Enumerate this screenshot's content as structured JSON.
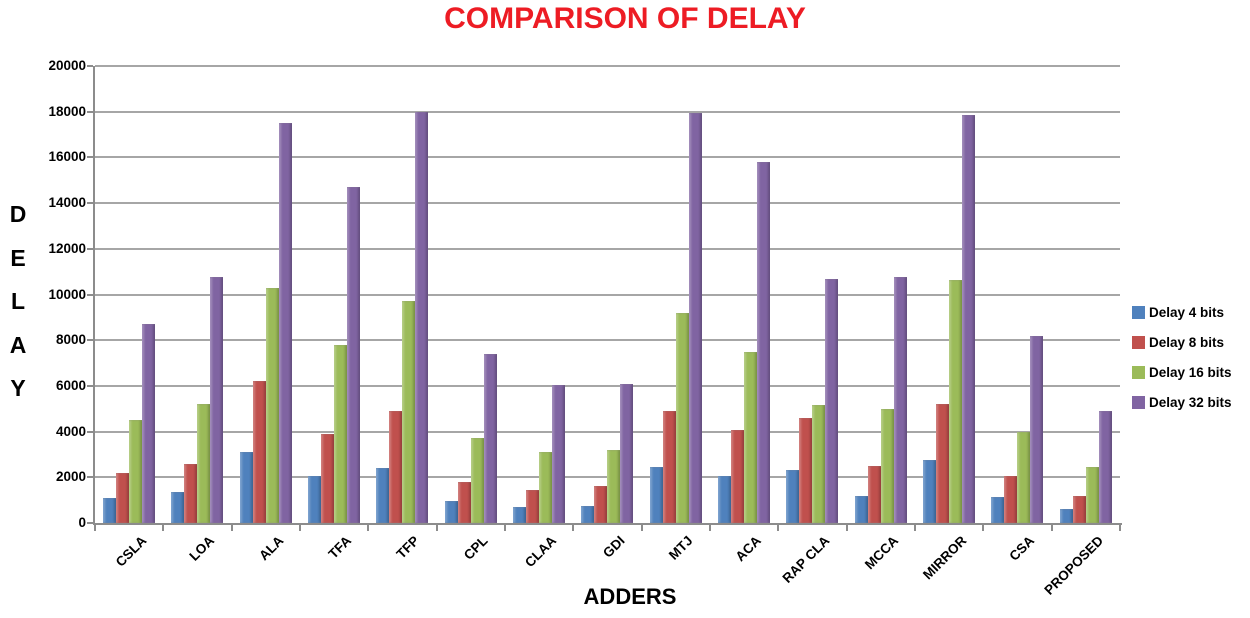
{
  "title": "COMPARISON OF DELAY",
  "colors": {
    "title_red": "#ED1C24",
    "axis_line": "#8C8C8C",
    "gridline": "#A6A6A6",
    "text": "#000000",
    "series_blue": "#4F81BD",
    "series_red": "#C0504D",
    "series_green": "#9BBB59",
    "series_purple": "#8064A2"
  },
  "chart_data": {
    "type": "bar",
    "title": "COMPARISON OF DELAY",
    "xlabel": "ADDERS",
    "ylabel": "DELAY",
    "ylim": [
      0,
      20000
    ],
    "yticks": [
      0,
      2000,
      4000,
      6000,
      8000,
      10000,
      12000,
      14000,
      16000,
      18000,
      20000
    ],
    "grid": true,
    "legend_position": "right",
    "categories": [
      "CSLA",
      "LOA",
      "ALA",
      "TFA",
      "TFP",
      "CPL",
      "CLAA",
      "GDI",
      "MTJ",
      "ACA",
      "RAP CLA",
      "MCCA",
      "MIRROR",
      "CSA",
      "PROPOSED"
    ],
    "series": [
      {
        "name": "Delay 4 bits",
        "color": "#4F81BD",
        "values": [
          1100,
          1350,
          3100,
          2050,
          2400,
          950,
          700,
          750,
          2450,
          2050,
          2300,
          1200,
          2750,
          1150,
          600
        ]
      },
      {
        "name": "Delay 8 bits",
        "color": "#C0504D",
        "values": [
          2200,
          2600,
          6200,
          3900,
          4900,
          1800,
          1450,
          1600,
          4900,
          4050,
          4600,
          2500,
          5200,
          2050,
          1200
        ]
      },
      {
        "name": "Delay 16 bits",
        "color": "#9BBB59",
        "values": [
          4500,
          5200,
          10300,
          7800,
          9700,
          3700,
          3100,
          3200,
          9200,
          7500,
          5150,
          5000,
          10650,
          4000,
          2450
        ]
      },
      {
        "name": "Delay 32 bits",
        "color": "#8064A2",
        "values": [
          8700,
          10750,
          17500,
          14700,
          18000,
          7400,
          6050,
          6100,
          17950,
          15800,
          10700,
          10750,
          17850,
          8200,
          4900
        ]
      }
    ]
  }
}
